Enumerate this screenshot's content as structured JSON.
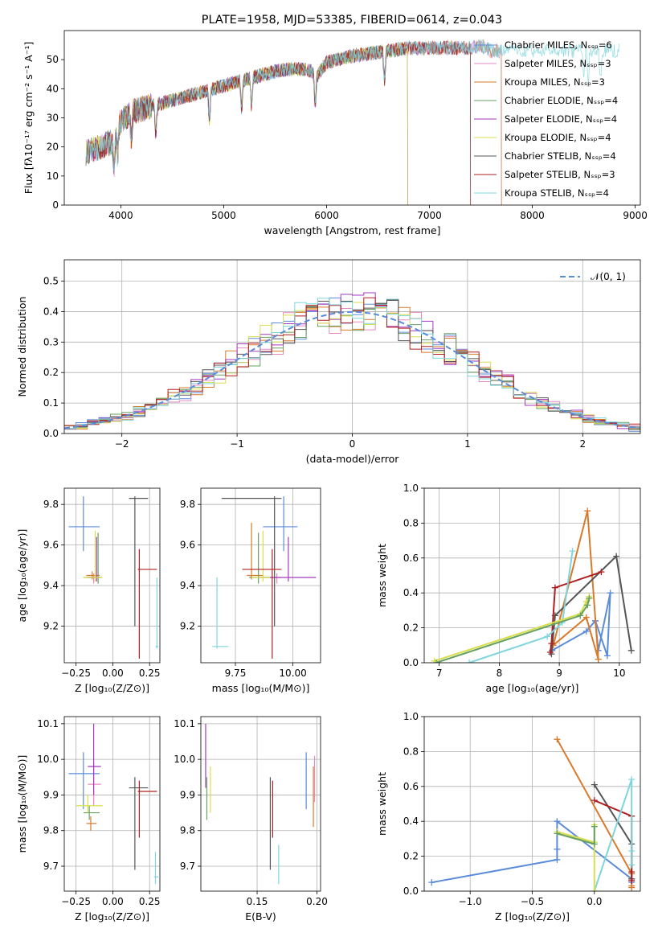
{
  "chart_data": [
    {
      "id": "spectrum",
      "type": "line",
      "title": "PLATE=1958, MJD=53385, FIBERID=0614, z=0.043",
      "xlabel": "wavelength [Angstrom, rest frame]",
      "ylabel": "Flux [fλ10⁻¹⁷ erg cm⁻² s⁻¹ A⁻¹]",
      "xlim": [
        3450,
        9050
      ],
      "ylim": [
        0,
        60
      ],
      "xticks": [
        4000,
        5000,
        6000,
        7000,
        8000,
        9000
      ],
      "yticks": [
        0,
        10,
        20,
        30,
        40,
        50
      ],
      "grid": false,
      "legend_position": "top-right",
      "continuum": {
        "x": [
          3660,
          3800,
          3920,
          3980,
          4100,
          4300,
          4500,
          4700,
          4900,
          5100,
          5300,
          5500,
          5700,
          5850,
          5900,
          6000,
          6200,
          6400,
          6600,
          6800,
          7000,
          7200,
          7400,
          7500,
          7600
        ],
        "y": [
          18,
          20,
          22,
          28,
          32,
          34,
          36,
          38,
          40,
          42,
          44,
          46,
          47,
          46,
          44,
          49,
          51,
          52,
          53,
          54,
          54,
          54,
          54,
          55,
          53
        ]
      },
      "series": [
        {
          "name": "Chabrier MILES, N_SSP=6",
          "color": "#5b8bd9",
          "x_end": 7700
        },
        {
          "name": "Salpeter MILES, N_SSP=3",
          "color": "#e78ac3",
          "x_end": 7700
        },
        {
          "name": "Kroupa MILES, N_SSP=3",
          "color": "#d97a2a",
          "x_end": 7700
        },
        {
          "name": "Chabrier ELODIE, N_SSP=4",
          "color": "#66a061",
          "x_end": 6790
        },
        {
          "name": "Salpeter ELODIE, N_SSP=4",
          "color": "#a43ac0",
          "x_end": 6790
        },
        {
          "name": "Kroupa ELODIE, N_SSP=4",
          "color": "#d9de4c",
          "x_end": 6790
        },
        {
          "name": "Chabrier STELIB, N_SSP=4",
          "color": "#555555",
          "x_end": 7400
        },
        {
          "name": "Salpeter STELIB, N_SSP=3",
          "color": "#b01f22",
          "x_end": 7400
        },
        {
          "name": "Kroupa STELIB, N_SSP=4",
          "color": "#7fd5dc",
          "x_end": 8850
        }
      ]
    },
    {
      "id": "residuals",
      "type": "step",
      "xlabel": "(data-model)/error",
      "ylabel": "Normed distribution",
      "xlim": [
        -2.5,
        2.5
      ],
      "ylim": [
        0,
        0.57
      ],
      "xticks": [
        -2,
        -1,
        0,
        1,
        2
      ],
      "yticks": [
        0.0,
        0.1,
        0.2,
        0.3,
        0.4,
        0.5
      ],
      "grid": true,
      "bins": 50,
      "legend": "𝒩(0, 1)",
      "legend_position": "top-right"
    },
    {
      "id": "age_vs_Z",
      "type": "errorbar",
      "xlabel": "Z [log₁₀(Z/Z⊙)]",
      "ylabel": "age  [log₁₀(age/yr)]",
      "xlim": [
        -0.33,
        0.32
      ],
      "ylim": [
        9.02,
        9.88
      ],
      "xticks": [
        -0.25,
        0.0,
        0.25
      ],
      "yticks": [
        9.2,
        9.4,
        9.6,
        9.8
      ],
      "grid": true,
      "points": [
        {
          "color": "#5b8bd9",
          "x": -0.2,
          "y": 9.69,
          "xlo": -0.3,
          "xhi": -0.09,
          "ylo": 9.57,
          "yhi": 9.84
        },
        {
          "color": "#e78ac3",
          "x": -0.13,
          "y": 9.44,
          "xlo": -0.17,
          "xhi": -0.08,
          "ylo": 9.41,
          "yhi": 9.46
        },
        {
          "color": "#d97a2a",
          "x": -0.14,
          "y": 9.45,
          "xlo": -0.18,
          "xhi": -0.09,
          "ylo": 9.43,
          "yhi": 9.47
        },
        {
          "color": "#66a061",
          "x": -0.1,
          "y": 9.44,
          "xlo": -0.2,
          "xhi": -0.08,
          "ylo": 9.41,
          "yhi": 9.66
        },
        {
          "color": "#a43ac0",
          "x": -0.11,
          "y": 9.44,
          "xlo": -0.17,
          "xhi": -0.09,
          "ylo": 9.42,
          "yhi": 9.64
        },
        {
          "color": "#d9de4c",
          "x": -0.12,
          "y": 9.44,
          "xlo": -0.2,
          "xhi": -0.07,
          "ylo": 9.42,
          "yhi": 9.67
        },
        {
          "color": "#555555",
          "x": 0.15,
          "y": 9.83,
          "xlo": 0.11,
          "xhi": 0.24,
          "ylo": 9.2,
          "yhi": 9.84
        },
        {
          "color": "#b01f22",
          "x": 0.18,
          "y": 9.48,
          "xlo": 0.17,
          "xhi": 0.3,
          "ylo": 9.04,
          "yhi": 9.58
        },
        {
          "color": "#7fd5dc",
          "x": 0.3,
          "y": 9.1,
          "xlo": 0.29,
          "xhi": 0.31,
          "ylo": 9.09,
          "yhi": 9.44
        }
      ]
    },
    {
      "id": "age_vs_mass",
      "type": "errorbar",
      "xlabel": "mass [log₁₀(M/M⊙)]",
      "xlim": [
        9.6,
        10.12
      ],
      "ylim": [
        9.02,
        9.88
      ],
      "xticks": [
        9.75,
        10.0
      ],
      "yticks": [
        9.2,
        9.4,
        9.6,
        9.8
      ],
      "grid": true,
      "points": [
        {
          "color": "#5b8bd9",
          "x": 9.96,
          "y": 9.69,
          "xlo": 9.87,
          "xhi": 10.02,
          "ylo": 9.57,
          "yhi": 9.84
        },
        {
          "color": "#e78ac3",
          "x": 9.93,
          "y": 9.44,
          "xlo": 9.85,
          "xhi": 9.95,
          "ylo": 9.41,
          "yhi": 9.46
        },
        {
          "color": "#d97a2a",
          "x": 9.82,
          "y": 9.45,
          "xlo": 9.8,
          "xhi": 9.87,
          "ylo": 9.43,
          "yhi": 9.71
        },
        {
          "color": "#66a061",
          "x": 9.85,
          "y": 9.44,
          "xlo": 9.81,
          "xhi": 9.9,
          "ylo": 9.41,
          "yhi": 9.66
        },
        {
          "color": "#a43ac0",
          "x": 9.98,
          "y": 9.44,
          "xlo": 9.9,
          "xhi": 10.1,
          "ylo": 9.42,
          "yhi": 9.64
        },
        {
          "color": "#d9de4c",
          "x": 9.87,
          "y": 9.44,
          "xlo": 9.82,
          "xhi": 9.9,
          "ylo": 9.42,
          "yhi": 9.67
        },
        {
          "color": "#555555",
          "x": 9.92,
          "y": 9.83,
          "xlo": 9.69,
          "xhi": 9.95,
          "ylo": 9.2,
          "yhi": 9.84
        },
        {
          "color": "#b01f22",
          "x": 9.91,
          "y": 9.48,
          "xlo": 9.78,
          "xhi": 9.95,
          "ylo": 9.04,
          "yhi": 9.58
        },
        {
          "color": "#7fd5dc",
          "x": 9.67,
          "y": 9.1,
          "xlo": 9.65,
          "xhi": 9.72,
          "ylo": 9.09,
          "yhi": 9.44
        }
      ]
    },
    {
      "id": "massweight_vs_age",
      "type": "line",
      "xlabel": "age  [log₁₀(age/yr)]",
      "ylabel": "mass weight",
      "xlim": [
        6.75,
        10.35
      ],
      "ylim": [
        0.0,
        1.0
      ],
      "xticks": [
        7,
        8,
        9,
        10
      ],
      "yticks": [
        0.0,
        0.2,
        0.4,
        0.6,
        0.8,
        1.0
      ],
      "grid": true,
      "series": [
        {
          "color": "#5b8bd9",
          "x": [
            8.88,
            9.45,
            9.6,
            9.8,
            9.85,
            9.65,
            9.6
          ],
          "y": [
            0.07,
            0.18,
            0.24,
            0.04,
            0.4,
            0.07,
            0.24
          ]
        },
        {
          "color": "#d97a2a",
          "x": [
            9.65,
            9.47,
            8.9,
            9.45,
            9.65
          ],
          "y": [
            0.02,
            0.87,
            0.1,
            0.26,
            0.02
          ]
        },
        {
          "color": "#555555",
          "x": [
            10.2,
            9.95,
            8.93,
            8.87
          ],
          "y": [
            0.07,
            0.61,
            0.27,
            0.05
          ]
        },
        {
          "color": "#b01f22",
          "x": [
            9.7,
            8.93,
            8.87,
            8.85
          ],
          "y": [
            0.52,
            0.43,
            0.11,
            0.06
          ]
        },
        {
          "color": "#7fd5dc",
          "x": [
            7.5,
            8.8,
            9.05,
            9.22
          ],
          "y": [
            0.0,
            0.15,
            0.23,
            0.64
          ]
        },
        {
          "color": "#d9de4c",
          "x": [
            6.92,
            9.35,
            9.45,
            9.5
          ],
          "y": [
            0.01,
            0.28,
            0.35,
            0.38
          ]
        },
        {
          "color": "#66a061",
          "x": [
            6.95,
            9.35,
            9.47,
            9.5
          ],
          "y": [
            0.0,
            0.27,
            0.33,
            0.37
          ]
        }
      ]
    },
    {
      "id": "mass_vs_Z",
      "type": "errorbar",
      "xlabel": "Z [log₁₀(Z/Z⊙)]",
      "ylabel": "mass [log₁₀(M/M⊙)]",
      "xlim": [
        -0.33,
        0.32
      ],
      "ylim": [
        9.63,
        10.12
      ],
      "xticks": [
        -0.25,
        0.0,
        0.25
      ],
      "yticks": [
        9.7,
        9.8,
        9.9,
        10.0,
        10.1
      ],
      "grid": true,
      "points": [
        {
          "color": "#5b8bd9",
          "x": -0.2,
          "y": 9.96,
          "xlo": -0.3,
          "xhi": -0.09,
          "ylo": 9.86,
          "yhi": 10.02
        },
        {
          "color": "#e78ac3",
          "x": -0.13,
          "y": 9.93,
          "xlo": -0.17,
          "xhi": -0.08,
          "ylo": 9.87,
          "yhi": 9.99
        },
        {
          "color": "#d97a2a",
          "x": -0.15,
          "y": 9.82,
          "xlo": -0.18,
          "xhi": -0.11,
          "ylo": 9.8,
          "yhi": 9.84
        },
        {
          "color": "#66a061",
          "x": -0.16,
          "y": 9.85,
          "xlo": -0.2,
          "xhi": -0.09,
          "ylo": 9.83,
          "yhi": 9.87
        },
        {
          "color": "#a43ac0",
          "x": -0.13,
          "y": 9.98,
          "xlo": -0.17,
          "xhi": -0.08,
          "ylo": 9.9,
          "yhi": 10.1
        },
        {
          "color": "#d9de4c",
          "x": -0.17,
          "y": 9.87,
          "xlo": -0.25,
          "xhi": -0.07,
          "ylo": 9.85,
          "yhi": 9.9
        },
        {
          "color": "#555555",
          "x": 0.15,
          "y": 9.92,
          "xlo": 0.11,
          "xhi": 0.24,
          "ylo": 9.69,
          "yhi": 9.95
        },
        {
          "color": "#b01f22",
          "x": 0.18,
          "y": 9.91,
          "xlo": 0.17,
          "xhi": 0.3,
          "ylo": 9.78,
          "yhi": 9.94
        },
        {
          "color": "#7fd5dc",
          "x": 0.29,
          "y": 9.67,
          "xlo": 0.28,
          "xhi": 0.31,
          "ylo": 9.65,
          "yhi": 9.74
        }
      ]
    },
    {
      "id": "mass_vs_ebv",
      "type": "errorbar",
      "xlabel": "E(B-V)",
      "xlim": [
        0.103,
        0.203
      ],
      "ylim": [
        9.63,
        10.12
      ],
      "xticks": [
        0.15,
        0.2
      ],
      "yticks": [
        9.7,
        9.8,
        9.9,
        10.0,
        10.1
      ],
      "grid": true,
      "points": [
        {
          "color": "#5b8bd9",
          "x": 0.191,
          "ylo": 9.86,
          "yhi": 10.02
        },
        {
          "color": "#e78ac3",
          "x": 0.198,
          "ylo": 9.88,
          "yhi": 10.01
        },
        {
          "color": "#d97a2a",
          "x": 0.197,
          "ylo": 9.81,
          "yhi": 9.98
        },
        {
          "color": "#66a061",
          "x": 0.108,
          "ylo": 9.83,
          "yhi": 9.95
        },
        {
          "color": "#a43ac0",
          "x": 0.107,
          "ylo": 9.92,
          "yhi": 10.1
        },
        {
          "color": "#d9de4c",
          "x": 0.111,
          "ylo": 9.85,
          "yhi": 9.98
        },
        {
          "color": "#555555",
          "x": 0.161,
          "ylo": 9.69,
          "yhi": 9.95
        },
        {
          "color": "#b01f22",
          "x": 0.163,
          "ylo": 9.78,
          "yhi": 9.94
        },
        {
          "color": "#7fd5dc",
          "x": 0.168,
          "ylo": 9.65,
          "yhi": 9.76
        }
      ]
    },
    {
      "id": "massweight_vs_Z",
      "type": "line",
      "xlabel": "Z [log₁₀(Z/Z⊙)]",
      "ylabel": "mass weight",
      "xlim": [
        -1.37,
        0.37
      ],
      "ylim": [
        0.0,
        1.0
      ],
      "xticks": [
        -1.0,
        -0.5,
        0.0
      ],
      "yticks": [
        0.0,
        0.2,
        0.4,
        0.6,
        0.8,
        1.0
      ],
      "grid": true,
      "series": [
        {
          "color": "#5b8bd9",
          "x": [
            -1.31,
            -0.3,
            -0.3,
            -0.3,
            0.3,
            0.3
          ],
          "y": [
            0.05,
            0.18,
            0.24,
            0.4,
            0.07,
            0.05
          ]
        },
        {
          "color": "#d97a2a",
          "x": [
            -0.3,
            0.3,
            0.3,
            0.3
          ],
          "y": [
            0.87,
            0.1,
            0.03,
            0.02
          ]
        },
        {
          "color": "#555555",
          "x": [
            0.0,
            0.3,
            0.3,
            0.3
          ],
          "y": [
            0.61,
            0.27,
            0.07,
            0.06
          ]
        },
        {
          "color": "#b01f22",
          "x": [
            0.0,
            0.3,
            0.3,
            0.3
          ],
          "y": [
            0.52,
            0.43,
            0.11,
            0.06
          ]
        },
        {
          "color": "#7fd5dc",
          "x": [
            0.0,
            0.3,
            0.3,
            0.3
          ],
          "y": [
            0.0,
            0.64,
            0.23,
            0.15
          ]
        },
        {
          "color": "#d9de4c",
          "x": [
            -0.3,
            0.0,
            0.0,
            0.0
          ],
          "y": [
            0.34,
            0.28,
            0.38,
            0.0
          ]
        },
        {
          "color": "#66a061",
          "x": [
            -0.3,
            0.0,
            0.0
          ],
          "y": [
            0.33,
            0.27,
            0.37
          ]
        }
      ]
    }
  ]
}
